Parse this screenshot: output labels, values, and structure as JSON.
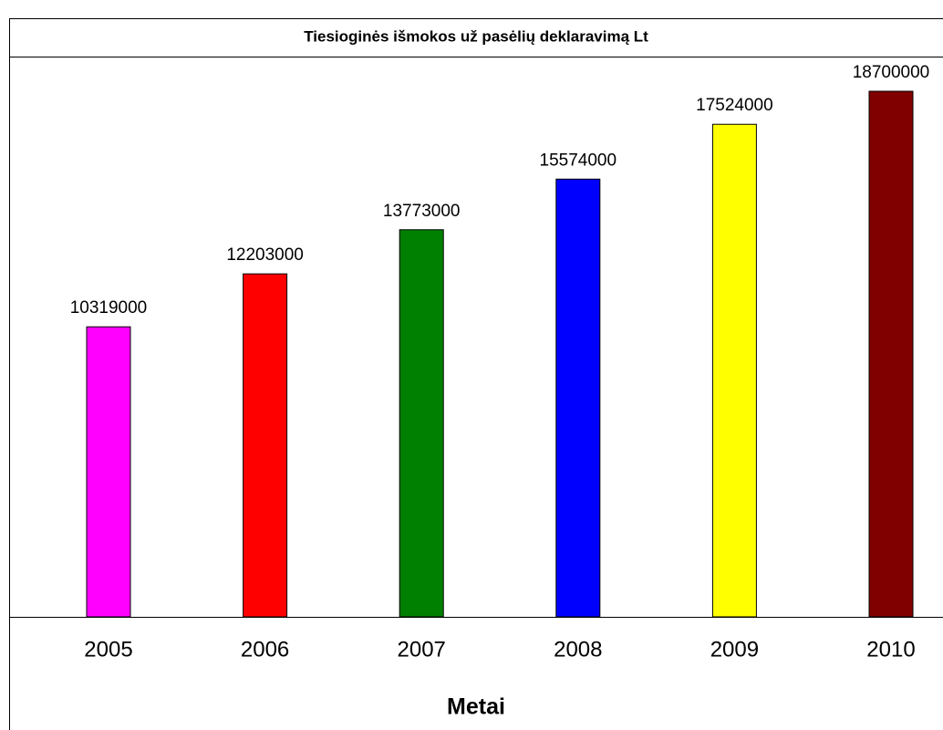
{
  "chart_data": {
    "type": "bar",
    "title": "Tiesioginės išmokos už pasėlių deklaravimą Lt",
    "x_label": "Metai",
    "categories": [
      "2005",
      "2006",
      "2007",
      "2008",
      "2009",
      "2010"
    ],
    "values": [
      10319000,
      12203000,
      13773000,
      15574000,
      17524000,
      18700000
    ],
    "colors": [
      "#ff00ff",
      "#ff0000",
      "#008000",
      "#0000ff",
      "#ffff00",
      "#800000"
    ]
  }
}
